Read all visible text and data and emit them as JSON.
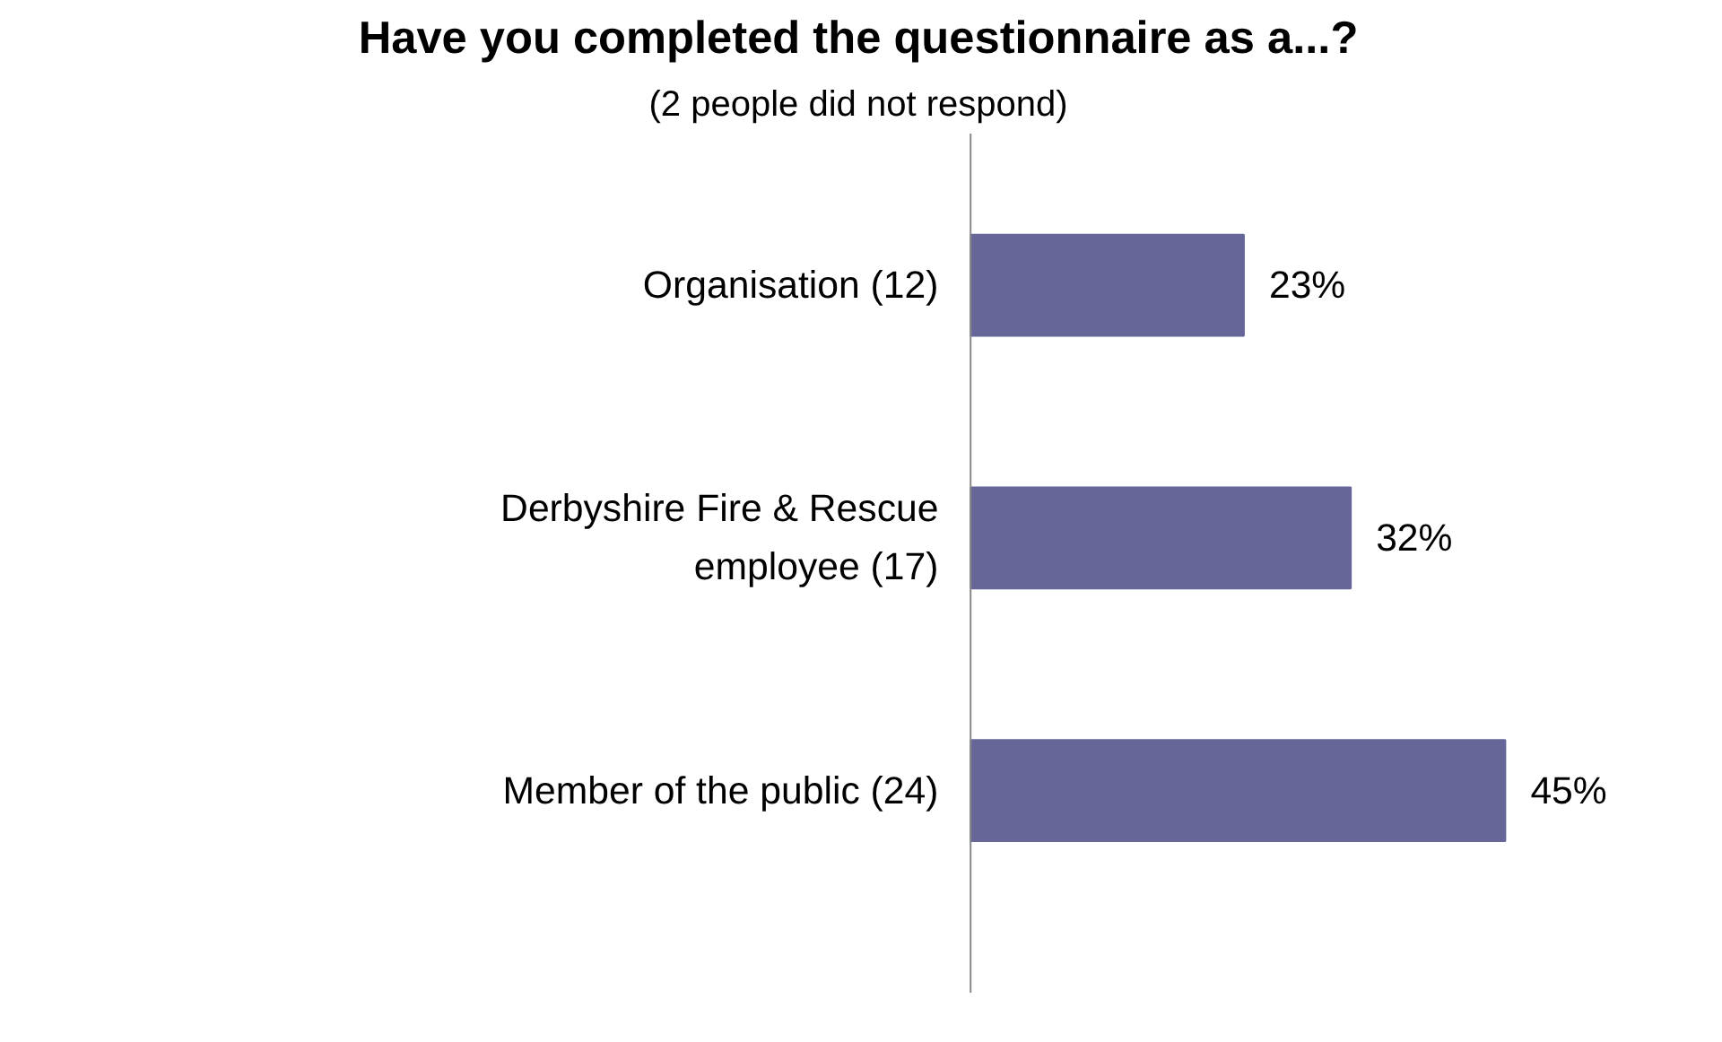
{
  "chart_data": {
    "type": "bar",
    "orientation": "horizontal",
    "title": "Have you completed the questionnaire as a...?",
    "subtitle": "(2 people did not respond)",
    "categories": [
      "Organisation (12)",
      "Derbyshire Fire & Rescue employee (17)",
      "Member of the public (24)"
    ],
    "values": [
      23,
      32,
      45
    ],
    "value_labels": [
      "23%",
      "32%",
      "45%"
    ],
    "color": "#666699",
    "grid": false,
    "tick_labels": "y"
  }
}
